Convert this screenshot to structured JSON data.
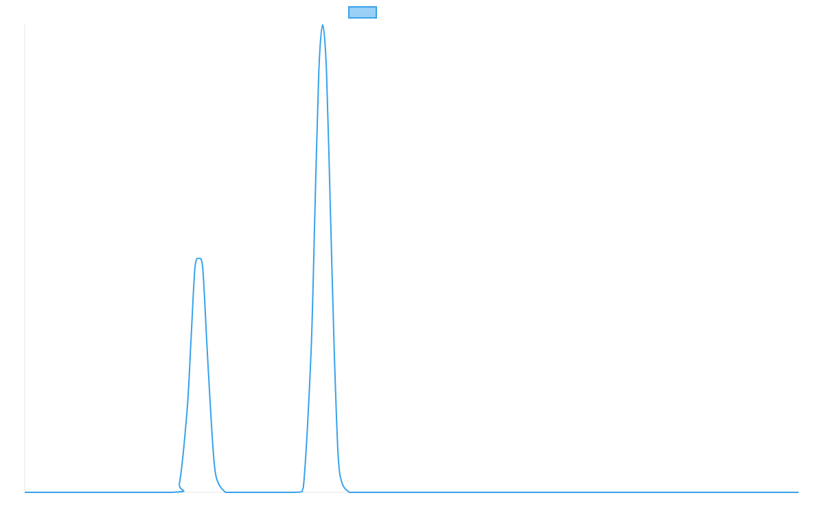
{
  "chart_data": {
    "type": "line",
    "title": "",
    "xlabel": "",
    "ylabel": "",
    "grid": false,
    "legend": {
      "position": "top-center",
      "entries": [
        {
          "label": "",
          "color": "#36a2eb",
          "fill": "#9ad0f5"
        }
      ]
    },
    "x_range": [
      0,
      100
    ],
    "y_range": [
      0,
      100
    ],
    "series": [
      {
        "color": "#36a2eb",
        "x": [
          0,
          19,
          20,
          21,
          21.5,
          22,
          22.5,
          23,
          23.5,
          24,
          24.5,
          25,
          26,
          27,
          28,
          35,
          36,
          37,
          37.5,
          38,
          38.5,
          39,
          39.5,
          40,
          40.5,
          41,
          42,
          43,
          44,
          60,
          80,
          100
        ],
        "y": [
          0,
          0,
          2,
          18,
          33,
          48,
          50,
          48,
          33,
          18,
          6,
          2,
          0,
          0,
          0,
          0,
          1,
          30,
          60,
          90,
          100,
          90,
          60,
          30,
          8,
          2,
          0,
          0,
          0,
          0,
          0,
          0
        ]
      }
    ]
  }
}
